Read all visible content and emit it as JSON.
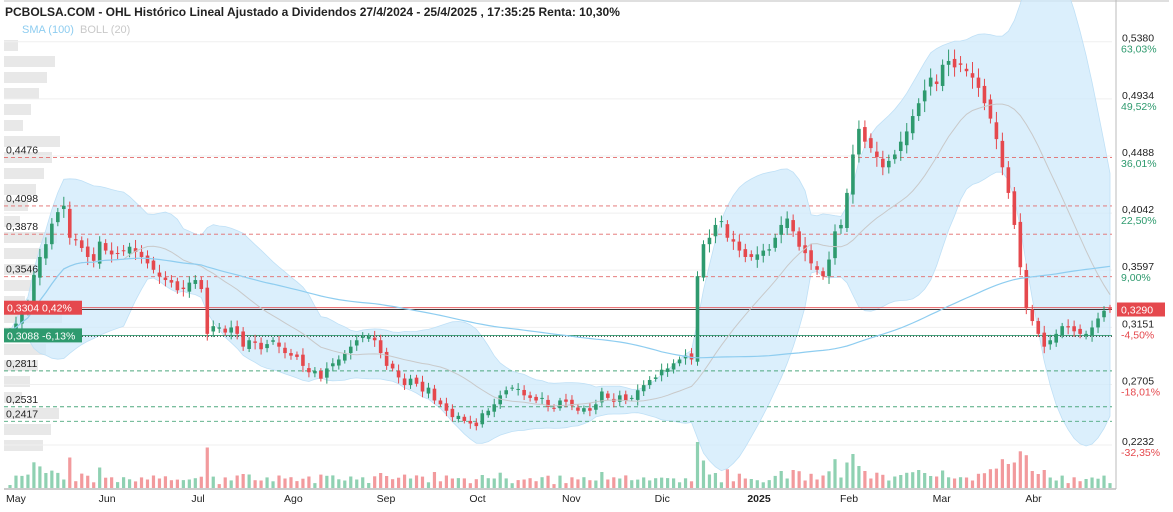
{
  "chart_data": {
    "type": "candlestick",
    "title": "PCBOLSA.COM - OHL Histórico Lineal Ajustado a Dividendos 27/4/2024 - 25/4/2025 , 17:35:25 Renta: 10,30%",
    "indicators": [
      {
        "label": "SMA (100)",
        "color": "#8ecdf0"
      },
      {
        "label": "BOLL (20)",
        "color": "#c9c9c9"
      }
    ],
    "ylim": [
      0.2131,
      0.5456
    ],
    "x_labels": [
      "May",
      "Jun",
      "Jul",
      "Ago",
      "Sep",
      "Oct",
      "Nov",
      "Dic",
      "2025",
      "Feb",
      "Mar",
      "Abr"
    ],
    "right_axis": [
      {
        "value": "0,5380",
        "pct": "63,03%"
      },
      {
        "value": "0,4934",
        "pct": "49,52%"
      },
      {
        "value": "0,4488",
        "pct": "36,01%"
      },
      {
        "value": "0,4042",
        "pct": "22,50%"
      },
      {
        "value": "0,3597",
        "pct": "9,00%"
      },
      {
        "value": "0,3151",
        "pct": "-4,50%"
      },
      {
        "value": "0,2705",
        "pct": "-18,01%"
      },
      {
        "value": "0,2232",
        "pct": "-32,35%"
      }
    ],
    "level_lines": [
      {
        "value": 0.4476,
        "label": "0,4476",
        "color": "#e26b6b"
      },
      {
        "value": 0.4098,
        "label": "0,4098",
        "color": "#e26b6b"
      },
      {
        "value": 0.3878,
        "label": "0,3878",
        "color": "#e26b6b"
      },
      {
        "value": 0.3546,
        "label": "0,3546",
        "color": "#e26b6b"
      },
      {
        "value": 0.2811,
        "label": "0,2811",
        "color": "#4ea87e"
      },
      {
        "value": 0.2531,
        "label": "0,2531",
        "color": "#4ea87e"
      },
      {
        "value": 0.2417,
        "label": "0,2417",
        "color": "#4ea87e"
      }
    ],
    "badges": [
      {
        "value": 0.3304,
        "label": "0,3304  0,42%",
        "color": "#e5484d"
      },
      {
        "value": 0.3088,
        "label": "0,3088  -6,13%",
        "color": "#2e9a6e"
      }
    ],
    "last_price": {
      "value": 0.329,
      "label": "0,3290",
      "color": "#e5484d"
    },
    "colors": {
      "up": "#2e9a6e",
      "down": "#e5484d",
      "band": "#cfe9fb",
      "sma": "#8ecdf0",
      "boll_mid": "#c9c9c9"
    },
    "series": [
      {
        "name": "close",
        "values": [
          0.312,
          0.318,
          0.327,
          0.333,
          0.356,
          0.37,
          0.38,
          0.396,
          0.405,
          0.41,
          0.385,
          0.383,
          0.377,
          0.37,
          0.367,
          0.382,
          0.375,
          0.372,
          0.373,
          0.375,
          0.378,
          0.374,
          0.37,
          0.365,
          0.36,
          0.355,
          0.352,
          0.35,
          0.344,
          0.345,
          0.35,
          0.352,
          0.345,
          0.31,
          0.316,
          0.315,
          0.311,
          0.315,
          0.31,
          0.3,
          0.305,
          0.303,
          0.298,
          0.302,
          0.305,
          0.3,
          0.295,
          0.293,
          0.292,
          0.285,
          0.28,
          0.281,
          0.275,
          0.283,
          0.287,
          0.29,
          0.295,
          0.3,
          0.305,
          0.308,
          0.308,
          0.305,
          0.295,
          0.285,
          0.283,
          0.276,
          0.27,
          0.275,
          0.271,
          0.265,
          0.268,
          0.258,
          0.255,
          0.25,
          0.245,
          0.246,
          0.242,
          0.24,
          0.238,
          0.248,
          0.25,
          0.255,
          0.262,
          0.266,
          0.268,
          0.267,
          0.262,
          0.26,
          0.258,
          0.26,
          0.253,
          0.252,
          0.258,
          0.257,
          0.254,
          0.25,
          0.252,
          0.25,
          0.255,
          0.265,
          0.26,
          0.257,
          0.262,
          0.258,
          0.26,
          0.266,
          0.27,
          0.274,
          0.276,
          0.282,
          0.283,
          0.287,
          0.29,
          0.293,
          0.29,
          0.355,
          0.38,
          0.385,
          0.395,
          0.398,
          0.385,
          0.382,
          0.375,
          0.37,
          0.37,
          0.372,
          0.375,
          0.376,
          0.385,
          0.395,
          0.4,
          0.39,
          0.378,
          0.373,
          0.365,
          0.36,
          0.355,
          0.368,
          0.39,
          0.395,
          0.42,
          0.45,
          0.47,
          0.46,
          0.455,
          0.448,
          0.44,
          0.445,
          0.45,
          0.46,
          0.468,
          0.48,
          0.49,
          0.5,
          0.51,
          0.505,
          0.52,
          0.523,
          0.518,
          0.52,
          0.515,
          0.51,
          0.502,
          0.49,
          0.478,
          0.462,
          0.44,
          0.42,
          0.395,
          0.362,
          0.33,
          0.32,
          0.31,
          0.3,
          0.305,
          0.31,
          0.316,
          0.315,
          0.312,
          0.31,
          0.31,
          0.315,
          0.322,
          0.328,
          0.329
        ]
      }
    ]
  }
}
